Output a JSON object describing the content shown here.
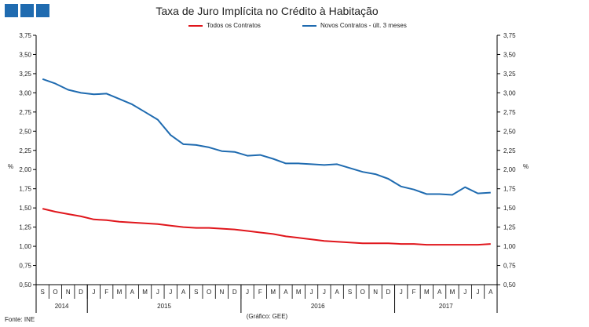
{
  "header": {
    "logo": {
      "color": "#1f6bb0",
      "icon": "logo-squares-icon"
    }
  },
  "chart_data": {
    "type": "line",
    "title": "Taxa de Juro Implícita no Crédito à Habitação",
    "ylabel_left": "%",
    "ylabel_right": "%",
    "ylim": [
      0.5,
      3.75
    ],
    "ytick_step": 0.25,
    "ytick_labels": [
      "0,50",
      "0,75",
      "1,00",
      "1,25",
      "1,50",
      "1,75",
      "2,00",
      "2,25",
      "2,50",
      "2,75",
      "3,00",
      "3,25",
      "3,50",
      "3,75"
    ],
    "months": [
      "S",
      "O",
      "N",
      "D",
      "J",
      "F",
      "M",
      "A",
      "M",
      "J",
      "J",
      "A",
      "S",
      "O",
      "N",
      "D",
      "J",
      "F",
      "M",
      "A",
      "M",
      "J",
      "J",
      "A",
      "S",
      "O",
      "N",
      "D",
      "J",
      "F",
      "M",
      "A",
      "M",
      "J",
      "J",
      "A"
    ],
    "years": [
      {
        "label": "2014",
        "months": 4
      },
      {
        "label": "2015",
        "months": 12
      },
      {
        "label": "2016",
        "months": 12
      },
      {
        "label": "2017",
        "months": 8
      }
    ],
    "series": [
      {
        "name": "Todos os Contratos",
        "color": "#e0161c",
        "values": [
          1.49,
          1.45,
          1.42,
          1.39,
          1.35,
          1.34,
          1.32,
          1.31,
          1.3,
          1.29,
          1.27,
          1.25,
          1.24,
          1.24,
          1.23,
          1.22,
          1.2,
          1.18,
          1.16,
          1.13,
          1.11,
          1.09,
          1.07,
          1.06,
          1.05,
          1.04,
          1.04,
          1.04,
          1.03,
          1.03,
          1.02,
          1.02,
          1.02,
          1.02,
          1.02,
          1.03
        ]
      },
      {
        "name": "Novos Contratos - últ. 3 meses",
        "color": "#1f6bb0",
        "values": [
          3.18,
          3.12,
          3.04,
          3.0,
          2.98,
          2.99,
          2.92,
          2.85,
          2.75,
          2.65,
          2.45,
          2.33,
          2.32,
          2.29,
          2.24,
          2.23,
          2.18,
          2.19,
          2.14,
          2.08,
          2.08,
          2.07,
          2.06,
          2.07,
          2.02,
          1.97,
          1.94,
          1.88,
          1.78,
          1.74,
          1.68,
          1.68,
          1.67,
          1.77,
          1.69,
          1.7
        ]
      }
    ]
  },
  "footer": {
    "source": "Fonte: INE",
    "credit": "(Gráfico: GEE)"
  }
}
